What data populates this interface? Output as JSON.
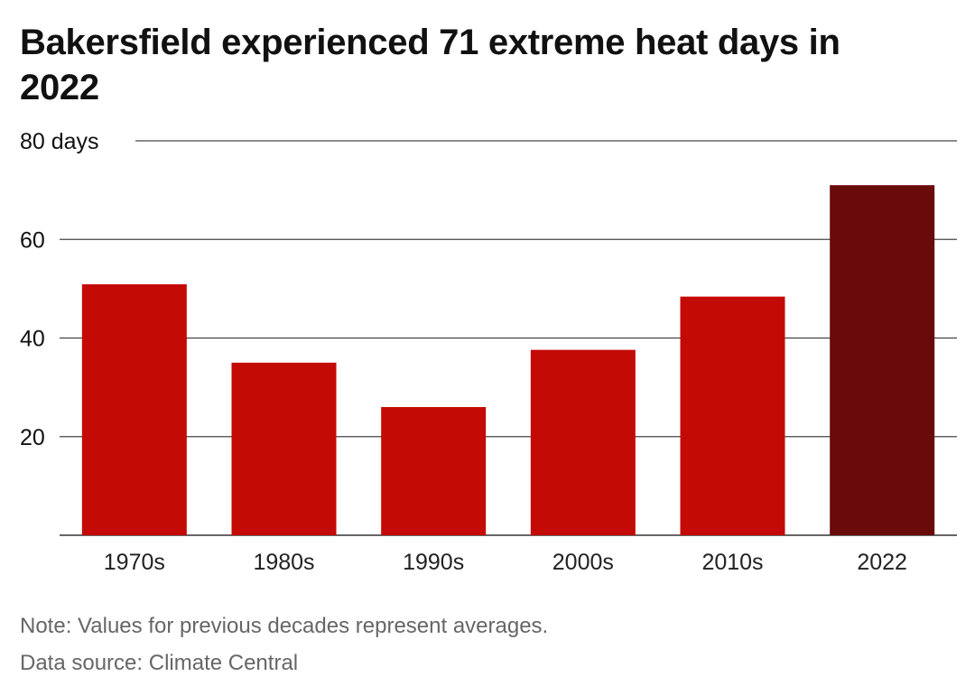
{
  "chart_data": {
    "type": "bar",
    "title": "Bakersfield experienced 71 extreme heat days in 2022",
    "categories": [
      "1970s",
      "1980s",
      "1990s",
      "2000s",
      "2010s",
      "2022"
    ],
    "values": [
      50.9,
      35.0,
      26.0,
      37.6,
      48.4,
      71.0
    ],
    "ylim": [
      0,
      80
    ],
    "y_ticks": [
      {
        "value": 20,
        "label": "20"
      },
      {
        "value": 40,
        "label": "40"
      },
      {
        "value": 60,
        "label": "60"
      },
      {
        "value": 80,
        "label": "80 days"
      }
    ],
    "grid": true,
    "xlabel": "",
    "ylabel": "",
    "colors": {
      "default": "#c40a05",
      "highlight": "#690a0b",
      "highlight_category": "2022",
      "grid": "#444444",
      "axis": "#333333"
    }
  },
  "footer": {
    "note": "Note: Values for previous decades represent averages.",
    "source": "Data source: Climate Central"
  }
}
